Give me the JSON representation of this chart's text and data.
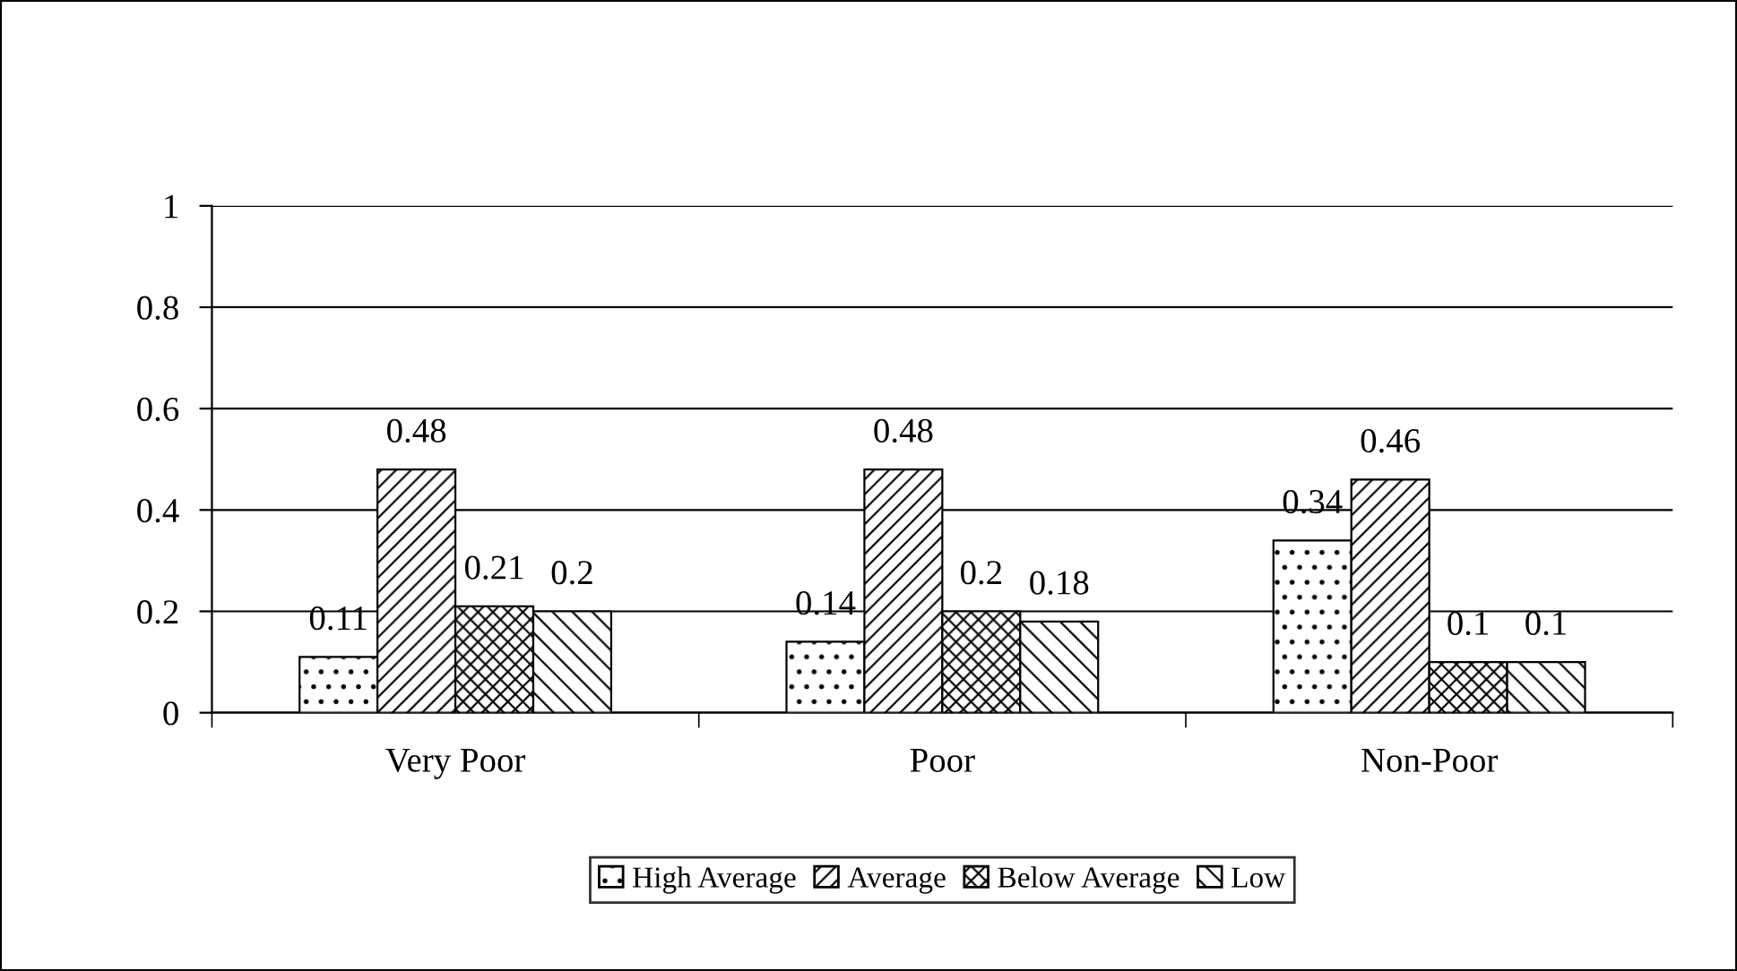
{
  "chart_data": {
    "type": "bar",
    "categories": [
      "Very Poor",
      "Poor",
      "Non-Poor"
    ],
    "series": [
      {
        "name": "High Average",
        "color": "#000000",
        "values": [
          0.11,
          0.14,
          0.34
        ]
      },
      {
        "name": "Average",
        "color": "#000000",
        "values": [
          0.48,
          0.48,
          0.46
        ]
      },
      {
        "name": "Below Average",
        "color": "#000000",
        "values": [
          0.21,
          0.2,
          0.1
        ]
      },
      {
        "name": "Low",
        "color": "#000000",
        "values": [
          0.2,
          0.18,
          0.1
        ]
      }
    ],
    "ylim": [
      0,
      1
    ],
    "yticks": [
      0,
      0.2,
      0.4,
      0.6,
      0.8,
      1
    ],
    "grid": "y",
    "legend": "bottom",
    "data_labels": true
  }
}
